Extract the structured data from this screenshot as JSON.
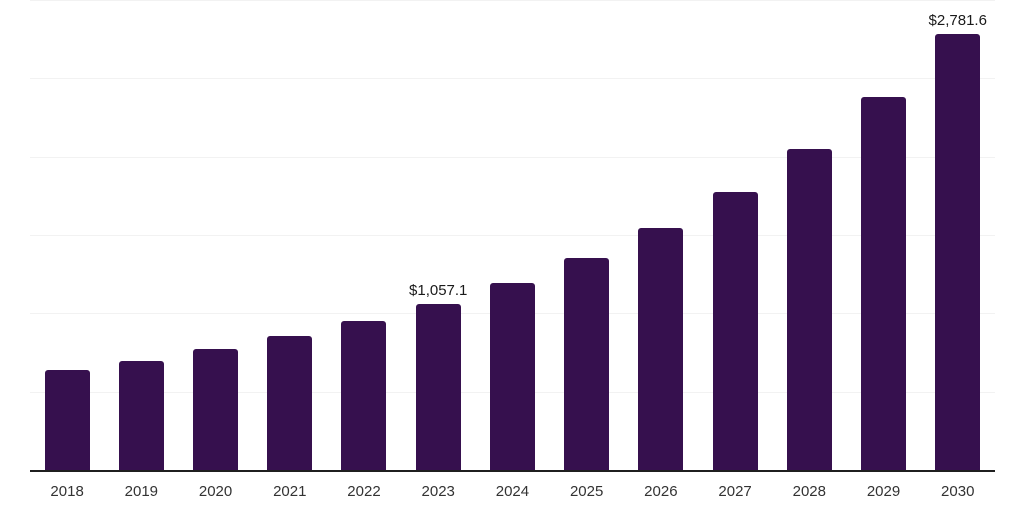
{
  "chart": {
    "background_color": "#ffffff",
    "bar_color": "#36104E",
    "axis_color": "#1f1f1f",
    "gridline_color": "#f2f2f2",
    "value_label_color": "#1a1a1a",
    "tick_label_color": "#333333"
  },
  "chart_data": {
    "type": "bar",
    "categories": [
      "2018",
      "2019",
      "2020",
      "2021",
      "2022",
      "2023",
      "2024",
      "2025",
      "2026",
      "2027",
      "2028",
      "2029",
      "2030"
    ],
    "values": [
      640,
      694,
      771,
      855,
      948,
      1057.1,
      1196,
      1351,
      1543,
      1772,
      2049,
      2379,
      2781.6
    ],
    "value_labels": {
      "2023": "$1,057.1",
      "2030": "$2,781.6"
    },
    "xlabel": "",
    "ylabel": "",
    "ylim": [
      0,
      3000
    ],
    "gridline_step": 500,
    "grid": "horizontal",
    "legend": "none"
  }
}
